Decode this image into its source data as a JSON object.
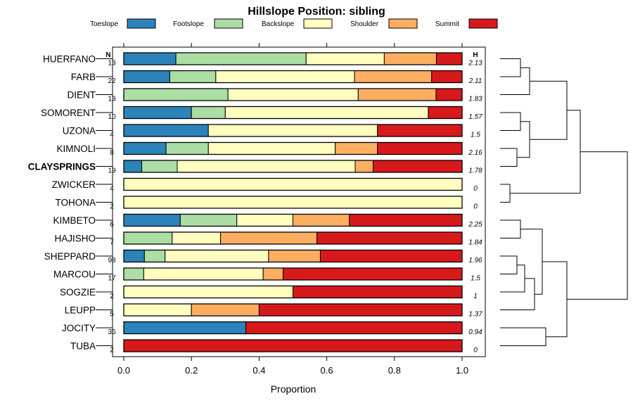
{
  "chart_data": {
    "type": "bar",
    "orientation": "horizontal-stacked",
    "title": "Hillslope Position: sibling",
    "xlabel": "Proportion",
    "xlim": [
      0,
      1
    ],
    "xticks": [
      "0.0",
      "0.2",
      "0.4",
      "0.6",
      "0.8",
      "1.0"
    ],
    "n_header": "N",
    "h_header": "H",
    "legend": [
      {
        "name": "Toeslope",
        "color": "#2B83BA"
      },
      {
        "name": "Footslope",
        "color": "#ABDDA4"
      },
      {
        "name": "Backslope",
        "color": "#FFFFBF"
      },
      {
        "name": "Shoulder",
        "color": "#FDAE61"
      },
      {
        "name": "Summit",
        "color": "#D7191C"
      }
    ],
    "rows": [
      {
        "label": "HUERFANO",
        "n": "13",
        "h": "2.13",
        "bold": false,
        "values": [
          0.154,
          0.385,
          0.231,
          0.154,
          0.076
        ]
      },
      {
        "label": "FARB",
        "n": "22",
        "h": "2.11",
        "bold": false,
        "values": [
          0.136,
          0.136,
          0.41,
          0.228,
          0.09
        ]
      },
      {
        "label": "DIENT",
        "n": "13",
        "h": "1.83",
        "bold": false,
        "values": [
          0.0,
          0.308,
          0.385,
          0.23,
          0.077
        ]
      },
      {
        "label": "SOMORENT",
        "n": "10",
        "h": "1.57",
        "bold": false,
        "values": [
          0.2,
          0.1,
          0.6,
          0.0,
          0.1
        ]
      },
      {
        "label": "UZONA",
        "n": "4",
        "h": "1.5",
        "bold": false,
        "values": [
          0.25,
          0.0,
          0.5,
          0.0,
          0.25
        ]
      },
      {
        "label": "KIMNOLI",
        "n": "8",
        "h": "2.16",
        "bold": false,
        "values": [
          0.125,
          0.125,
          0.375,
          0.125,
          0.25
        ]
      },
      {
        "label": "CLAYSPRINGS",
        "n": "19",
        "h": "1.78",
        "bold": true,
        "values": [
          0.053,
          0.105,
          0.526,
          0.053,
          0.263
        ]
      },
      {
        "label": "ZWICKER",
        "n": "4",
        "h": "0",
        "bold": false,
        "values": [
          0.0,
          0.0,
          1.0,
          0.0,
          0.0
        ]
      },
      {
        "label": "TOHONA",
        "n": "2",
        "h": "0",
        "bold": false,
        "values": [
          0.0,
          0.0,
          1.0,
          0.0,
          0.0
        ]
      },
      {
        "label": "KIMBETO",
        "n": "6",
        "h": "2.25",
        "bold": false,
        "values": [
          0.167,
          0.167,
          0.166,
          0.167,
          0.333
        ]
      },
      {
        "label": "HAJISHO",
        "n": "7",
        "h": "1.84",
        "bold": false,
        "values": [
          0.0,
          0.143,
          0.143,
          0.285,
          0.429
        ]
      },
      {
        "label": "SHEPPARD",
        "n": "98",
        "h": "1.96",
        "bold": false,
        "values": [
          0.061,
          0.061,
          0.306,
          0.153,
          0.419
        ]
      },
      {
        "label": "MARCOU",
        "n": "17",
        "h": "1.5",
        "bold": false,
        "values": [
          0.0,
          0.059,
          0.353,
          0.059,
          0.529
        ]
      },
      {
        "label": "SOGZIE",
        "n": "2",
        "h": "1",
        "bold": false,
        "values": [
          0.0,
          0.0,
          0.5,
          0.0,
          0.5
        ]
      },
      {
        "label": "LEUPP",
        "n": "5",
        "h": "1.37",
        "bold": false,
        "values": [
          0.0,
          0.0,
          0.2,
          0.2,
          0.6
        ]
      },
      {
        "label": "JOCITY",
        "n": "36",
        "h": "0.94",
        "bold": false,
        "values": [
          0.361,
          0.0,
          0.0,
          0.0,
          0.639
        ]
      },
      {
        "label": "TUBA",
        "n": "2",
        "h": "0",
        "bold": false,
        "values": [
          0.0,
          0.0,
          0.0,
          0.0,
          1.0
        ]
      }
    ],
    "dendrogram": "hierarchical clustering tree linking the rows"
  }
}
